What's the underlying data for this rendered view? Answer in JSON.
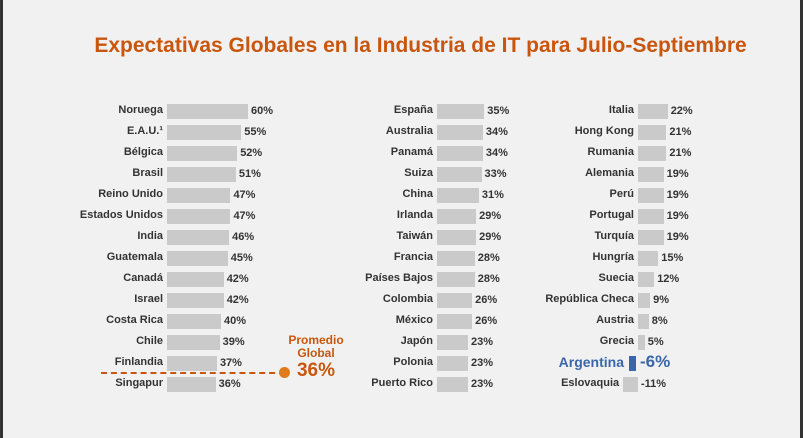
{
  "title": "Expectativas Globales en la Industria de IT para Julio-Septiembre",
  "average": {
    "line1": "Promedio",
    "line2": "Global",
    "value": "36%",
    "value_num": 36
  },
  "colors": {
    "title": "#c8560f",
    "bar": "#cacaca",
    "highlight": "#3b66a8"
  },
  "chart_data": {
    "type": "bar",
    "orientation": "horizontal",
    "columns": [
      [
        {
          "c": "Noruega",
          "v": 60
        },
        {
          "c": "E.A.U.¹",
          "v": 55
        },
        {
          "c": "Bélgica",
          "v": 52
        },
        {
          "c": "Brasil",
          "v": 51
        },
        {
          "c": "Reino Unido",
          "v": 47
        },
        {
          "c": "Estados Unidos",
          "v": 47
        },
        {
          "c": "India",
          "v": 46
        },
        {
          "c": "Guatemala",
          "v": 45
        },
        {
          "c": "Canadá",
          "v": 42
        },
        {
          "c": "Israel",
          "v": 42
        },
        {
          "c": "Costa Rica",
          "v": 40
        },
        {
          "c": "Chile",
          "v": 39
        },
        {
          "c": "Finlandia",
          "v": 37
        },
        {
          "c": "Singapur",
          "v": 36
        }
      ],
      [
        {
          "c": "España",
          "v": 35
        },
        {
          "c": "Australia",
          "v": 34
        },
        {
          "c": "Panamá",
          "v": 34
        },
        {
          "c": "Suiza",
          "v": 33
        },
        {
          "c": "China",
          "v": 31
        },
        {
          "c": "Irlanda",
          "v": 29
        },
        {
          "c": "Taiwán",
          "v": 29
        },
        {
          "c": "Francia",
          "v": 28
        },
        {
          "c": "Países Bajos",
          "v": 28
        },
        {
          "c": "Colombia",
          "v": 26
        },
        {
          "c": "México",
          "v": 26
        },
        {
          "c": "Japón",
          "v": 23
        },
        {
          "c": "Polonia",
          "v": 23
        },
        {
          "c": "Puerto Rico",
          "v": 23
        }
      ],
      [
        {
          "c": "Italia",
          "v": 22
        },
        {
          "c": "Hong Kong",
          "v": 21
        },
        {
          "c": "Rumania",
          "v": 21
        },
        {
          "c": "Alemania",
          "v": 19
        },
        {
          "c": "Perú",
          "v": 19
        },
        {
          "c": "Portugal",
          "v": 19
        },
        {
          "c": "Turquía",
          "v": 19
        },
        {
          "c": "Hungría",
          "v": 15
        },
        {
          "c": "Suecia",
          "v": 12
        },
        {
          "c": "República Checa",
          "v": 9
        },
        {
          "c": "Austria",
          "v": 8
        },
        {
          "c": "Grecia",
          "v": 5
        },
        {
          "c": "Argentina",
          "v": -6,
          "highlight": true
        },
        {
          "c": "Eslovaquia",
          "v": -11
        }
      ]
    ]
  }
}
